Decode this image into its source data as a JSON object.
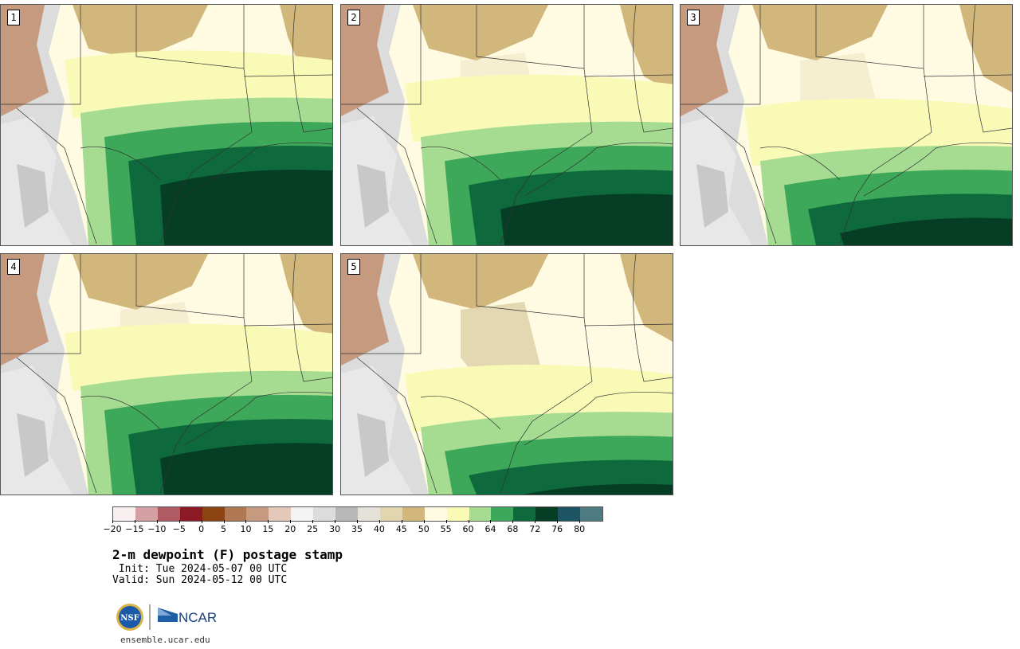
{
  "panels": [
    {
      "id": "1",
      "green": 0.45
    },
    {
      "id": "2",
      "green": 0.55
    },
    {
      "id": "3",
      "green": 0.65
    },
    {
      "id": "4",
      "green": 0.55
    },
    {
      "id": "5",
      "green": 0.72
    }
  ],
  "colorbar": {
    "colors": [
      "#f8f0f0",
      "#d4a0a4",
      "#b05a64",
      "#8c1a24",
      "#8c4512",
      "#b07852",
      "#c69a7e",
      "#e4c8b8",
      "#f4f4f4",
      "#dcdcdc",
      "#b8b8b8",
      "#e4e2d8",
      "#e2d6ae",
      "#d2b77c",
      "#fffbe2",
      "#f8fab6",
      "#a6dc92",
      "#3ea85a",
      "#0e6a3c",
      "#053e24",
      "#1c5464",
      "#4e7a82"
    ],
    "tick_labels": [
      "−20",
      "−15",
      "−10",
      "−5",
      "0",
      "5",
      "10",
      "15",
      "20",
      "25",
      "30",
      "35",
      "40",
      "45",
      "50",
      "55",
      "60",
      "64",
      "68",
      "72",
      "76",
      "80"
    ]
  },
  "title": "2-m dewpoint (F) postage stamp",
  "init": " Init: Tue 2024-05-07 00 UTC",
  "valid": "Valid: Sun 2024-05-12 00 UTC",
  "logos": {
    "nsf": "NSF",
    "ncar": "NCAR"
  },
  "url": "ensemble.ucar.edu"
}
